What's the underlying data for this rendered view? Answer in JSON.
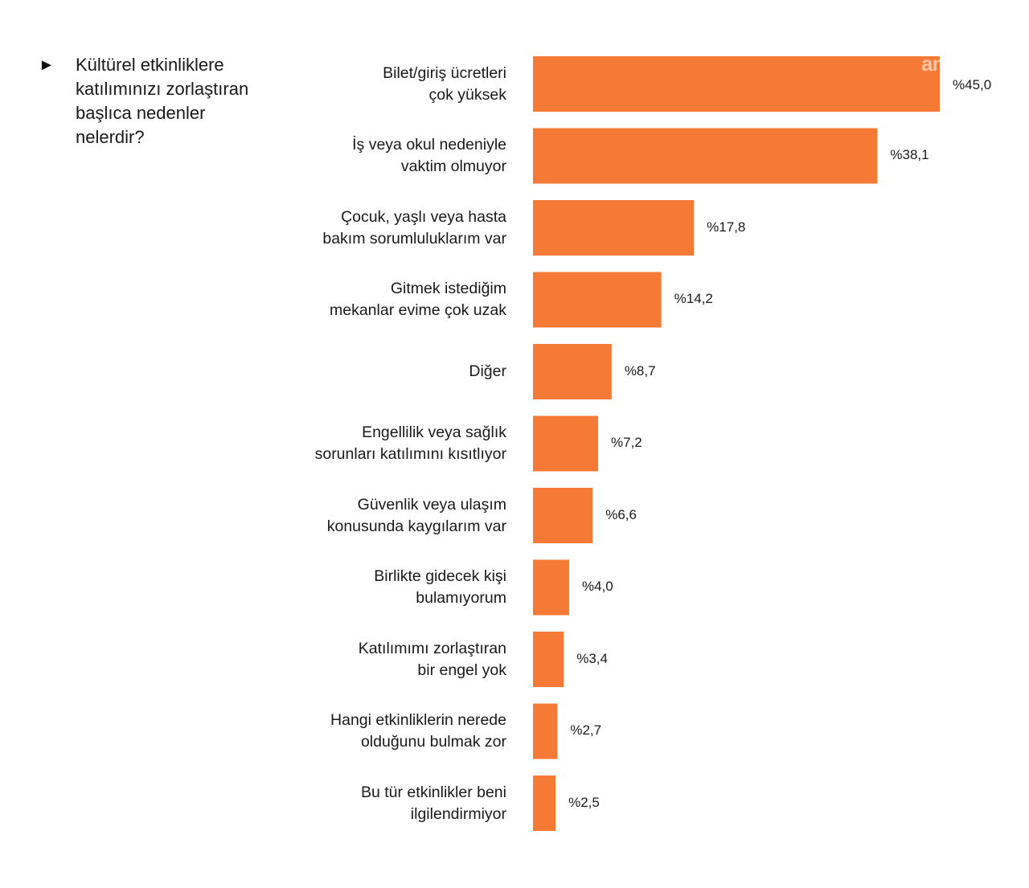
{
  "question": {
    "marker": "►",
    "text": "Kültürel etkinliklere katılımınızı zorlaştıran başlıca nedenler nelerdir?"
  },
  "watermark": "anka",
  "colors": {
    "bar": "#F47A36",
    "text": "#1a1a1a"
  },
  "chart_data": {
    "type": "bar",
    "orientation": "horizontal",
    "title": "",
    "categories": [
      [
        "Bilet/giriş ücretleri",
        "çok yüksek"
      ],
      [
        "İş veya okul nedeniyle",
        "vaktim olmuyor"
      ],
      [
        "Çocuk, yaşlı veya hasta",
        "bakım sorumluluklarım var"
      ],
      [
        "Gitmek istediğim",
        "mekanlar evime çok uzak"
      ],
      [
        "Diğer"
      ],
      [
        "Engellilik veya sağlık",
        "sorunları katılımını kısıtlıyor"
      ],
      [
        "Güvenlik veya ulaşım",
        "konusunda kaygılarım var"
      ],
      [
        "Birlikte  gidecek kişi",
        "bulamıyorum"
      ],
      [
        "Katılımımı zorlaştıran",
        "bir engel yok"
      ],
      [
        "Hangi etkinliklerin nerede",
        "olduğunu bulmak zor"
      ],
      [
        "Bu tür etkinlikler beni",
        "ilgilendirmiyor"
      ]
    ],
    "values": [
      45.0,
      38.1,
      17.8,
      14.2,
      8.7,
      7.2,
      6.6,
      4.0,
      3.4,
      2.7,
      2.5
    ],
    "value_labels": [
      "%45,0",
      "%38,1",
      "%17,8",
      "%14,2",
      "%8,7",
      "%7,2",
      "%6,6",
      "%4,0",
      "%3,4",
      "%2,7",
      "%2,5"
    ],
    "xlim": [
      0,
      45.0
    ],
    "grid": false,
    "legend": "none"
  }
}
